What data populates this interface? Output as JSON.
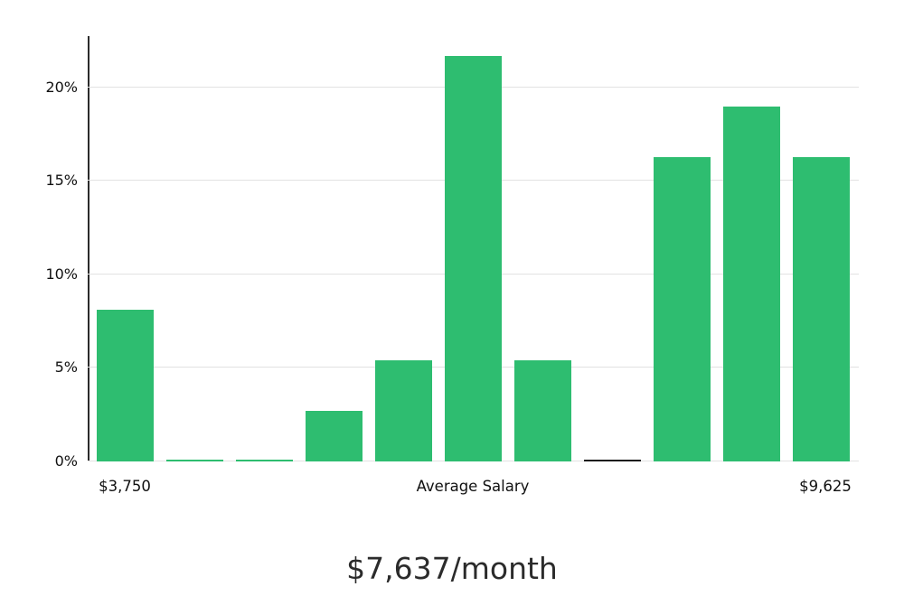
{
  "chart_data": {
    "type": "bar",
    "title": "$7,637/month",
    "values": [
      8.1,
      0.1,
      0.1,
      2.7,
      5.4,
      21.7,
      5.4,
      0.1,
      16.3,
      19.0,
      16.3
    ],
    "highlight_index": 7,
    "bar_color": "#2ebd70",
    "highlight_color": "#1a1a1a",
    "y_ticks": [
      {
        "label": "0%",
        "value": 0
      },
      {
        "label": "5%",
        "value": 5
      },
      {
        "label": "10%",
        "value": 10
      },
      {
        "label": "15%",
        "value": 15
      },
      {
        "label": "20%",
        "value": 20
      }
    ],
    "ylim": [
      0,
      22.75
    ],
    "grid": true,
    "legend": "none",
    "x_labels": {
      "left": "$3,750",
      "middle": "Average Salary",
      "right": "$9,625"
    }
  }
}
